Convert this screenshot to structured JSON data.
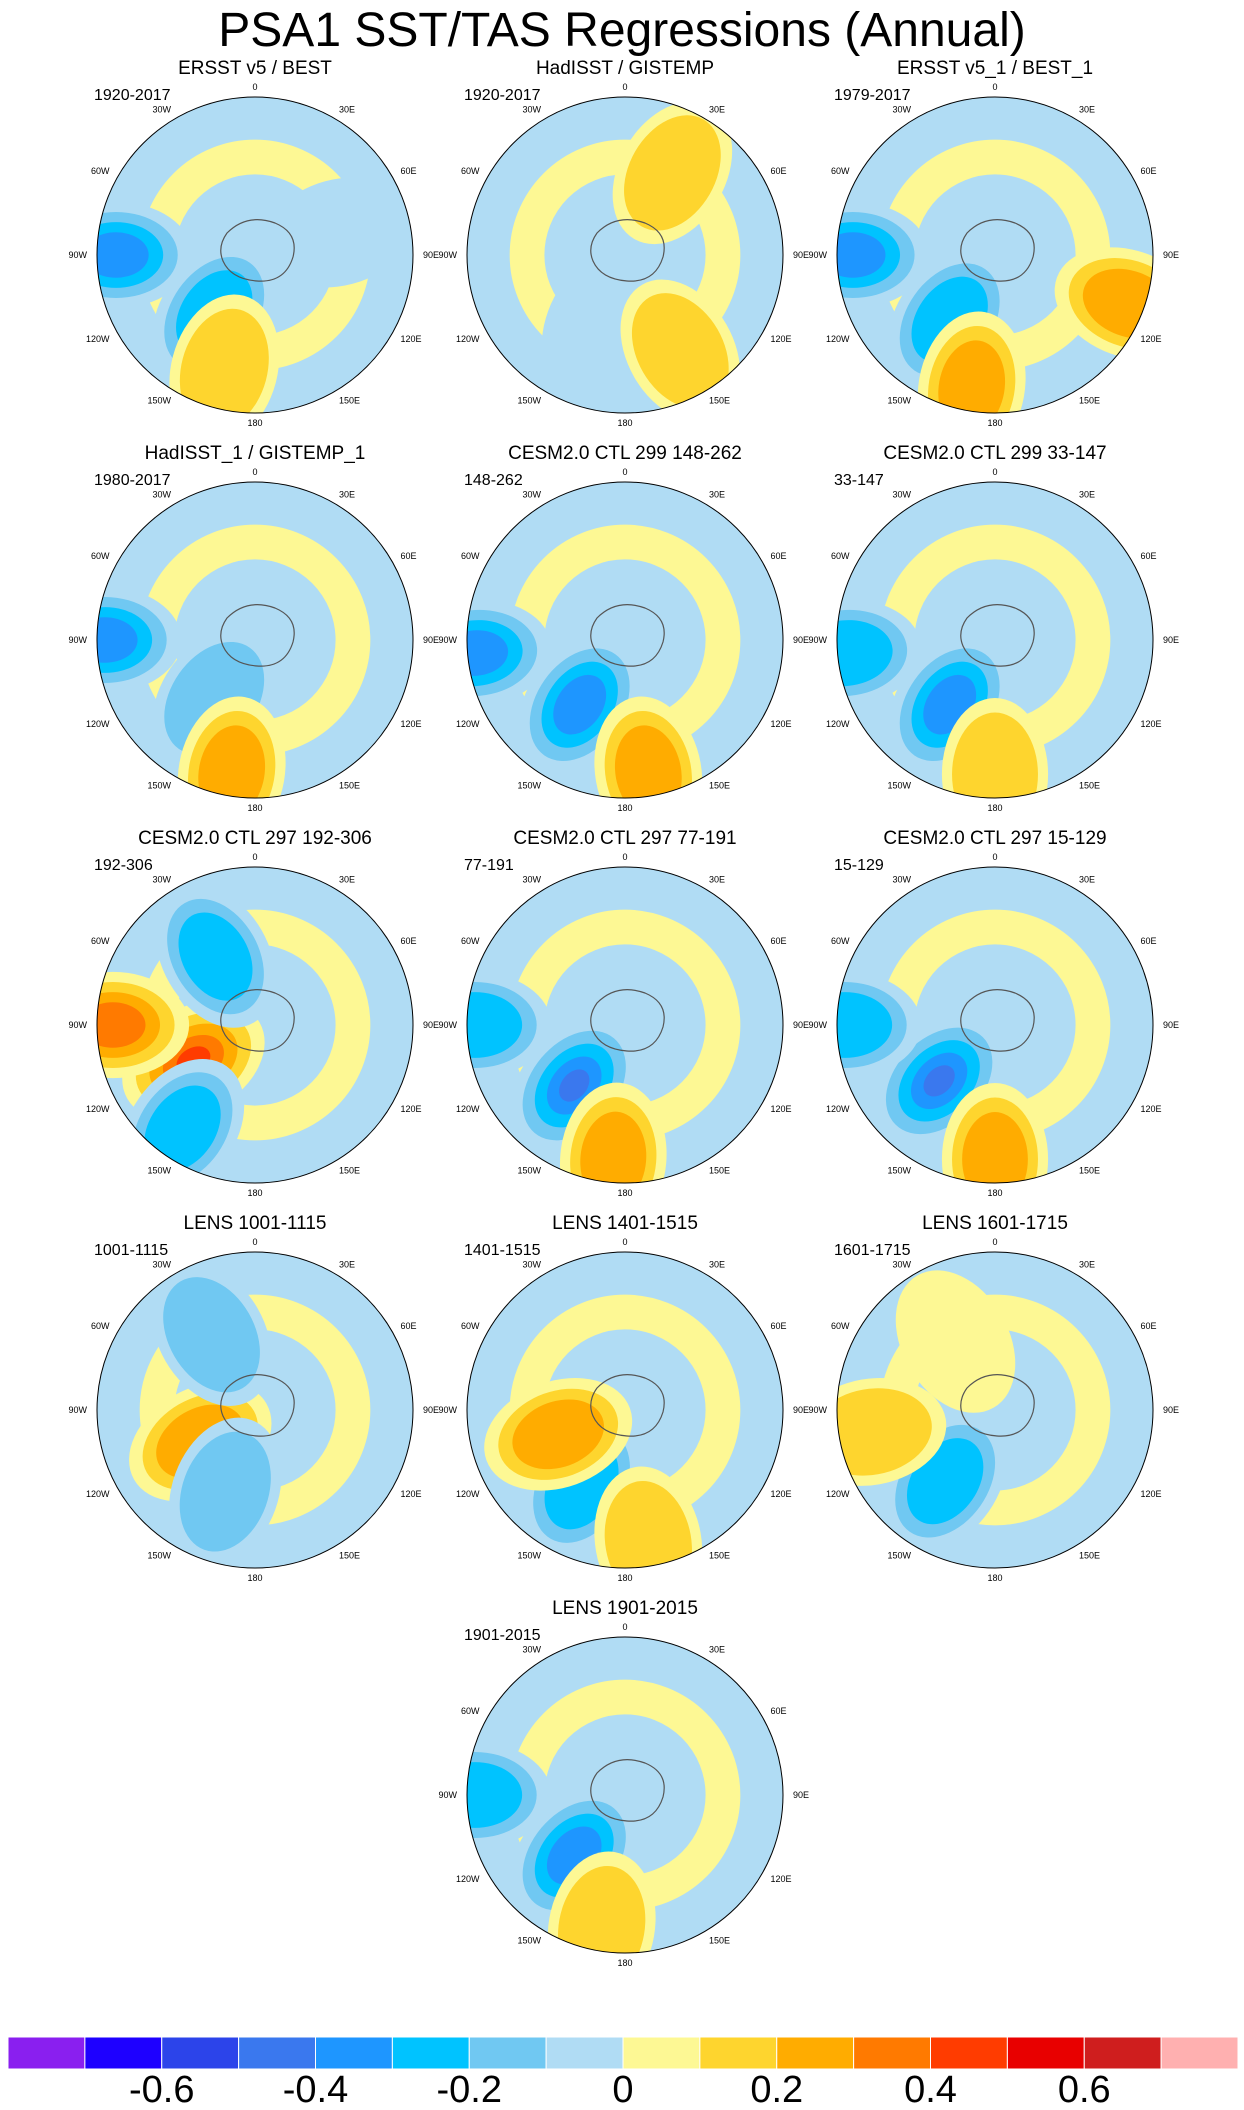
{
  "chart_data": {
    "type": "heatmap",
    "title": "PSA1 SST/TAS Regressions (Annual)",
    "projection": "south-polar-stereographic",
    "longitude_labels": [
      "0",
      "30E",
      "60E",
      "90E",
      "120E",
      "150E",
      "180",
      "150W",
      "120W",
      "90W",
      "60W",
      "30W"
    ],
    "colorbar": {
      "levels": [
        -0.7,
        -0.6,
        -0.5,
        -0.4,
        -0.3,
        -0.2,
        -0.1,
        0,
        0.1,
        0.2,
        0.3,
        0.4,
        0.5,
        0.6,
        0.7
      ],
      "tick_labels": [
        "-0.6",
        "-0.4",
        "-0.2",
        "0",
        "0.2",
        "0.4",
        "0.6"
      ],
      "tick_values": [
        -0.6,
        -0.4,
        -0.2,
        0,
        0.2,
        0.4,
        0.6
      ],
      "colors": [
        "#8a1fef",
        "#1e00ff",
        "#2c44ea",
        "#3a78ee",
        "#1e96ff",
        "#00c3ff",
        "#70c8f2",
        "#b0dcf4",
        "#fdf894",
        "#fed52e",
        "#ffac00",
        "#ff7a00",
        "#ff3c00",
        "#e80000",
        "#cf1e1e",
        "#ffb0b0"
      ]
    },
    "panels": [
      {
        "title": "ERSST v5 / BEST",
        "period": "1920-2017",
        "features": [
          {
            "lon": 215,
            "r": 0.45,
            "v": -0.3
          },
          {
            "lon": 195,
            "r": 0.75,
            "v": 0.2
          },
          {
            "lon": 270,
            "r": 0.88,
            "v": -0.4
          },
          {
            "lon": 75,
            "r": 0.55,
            "v": -0.1
          }
        ]
      },
      {
        "title": "HadISST / GISTEMP",
        "period": "1920-2017",
        "features": [
          {
            "lon": 0,
            "r": 0.0,
            "v": -0.1
          },
          {
            "lon": 200,
            "r": 0.5,
            "v": -0.1
          },
          {
            "lon": 30,
            "r": 0.6,
            "v": 0.2
          },
          {
            "lon": 150,
            "r": 0.7,
            "v": 0.2
          }
        ]
      },
      {
        "title": "ERSST v5_1 / BEST_1",
        "period": "1979-2017",
        "features": [
          {
            "lon": 215,
            "r": 0.5,
            "v": -0.3
          },
          {
            "lon": 190,
            "r": 0.85,
            "v": 0.3
          },
          {
            "lon": 270,
            "r": 0.9,
            "v": -0.4
          },
          {
            "lon": 110,
            "r": 0.9,
            "v": 0.3
          }
        ]
      },
      {
        "title": "HadISST_1 / GISTEMP_1",
        "period": "1980-2017",
        "features": [
          {
            "lon": 215,
            "r": 0.45,
            "v": -0.2
          },
          {
            "lon": 190,
            "r": 0.85,
            "v": 0.3
          },
          {
            "lon": 270,
            "r": 0.95,
            "v": -0.4
          }
        ]
      },
      {
        "title": "CESM2.0 CTL 299 148-262",
        "period": "148-262",
        "features": [
          {
            "lon": 215,
            "r": 0.5,
            "v": -0.4
          },
          {
            "lon": 170,
            "r": 0.85,
            "v": 0.3
          },
          {
            "lon": 265,
            "r": 0.95,
            "v": -0.4
          }
        ]
      },
      {
        "title": "CESM2.0 CTL 299 33-147",
        "period": "33-147",
        "features": [
          {
            "lon": 215,
            "r": 0.5,
            "v": -0.4
          },
          {
            "lon": 180,
            "r": 0.85,
            "v": 0.2
          },
          {
            "lon": 265,
            "r": 0.95,
            "v": -0.3
          }
        ]
      },
      {
        "title": "CESM2.0 CTL 297 192-306",
        "period": "192-306",
        "features": [
          {
            "lon": 240,
            "r": 0.45,
            "v": 0.6
          },
          {
            "lon": 215,
            "r": 0.8,
            "v": -0.3
          },
          {
            "lon": 330,
            "r": 0.5,
            "v": -0.3
          },
          {
            "lon": 270,
            "r": 0.9,
            "v": 0.4
          }
        ]
      },
      {
        "title": "CESM2.0 CTL 297 77-191",
        "period": "77-191",
        "features": [
          {
            "lon": 220,
            "r": 0.5,
            "v": -0.5
          },
          {
            "lon": 185,
            "r": 0.85,
            "v": 0.3
          },
          {
            "lon": 270,
            "r": 0.95,
            "v": -0.3
          }
        ]
      },
      {
        "title": "CESM2.0 CTL 297 15-129",
        "period": "15-129",
        "features": [
          {
            "lon": 225,
            "r": 0.5,
            "v": -0.5
          },
          {
            "lon": 180,
            "r": 0.85,
            "v": 0.3
          },
          {
            "lon": 270,
            "r": 0.95,
            "v": -0.3
          }
        ]
      },
      {
        "title": "LENS 1001-1115",
        "period": "1001-1115",
        "features": [
          {
            "lon": 240,
            "r": 0.4,
            "v": 0.3
          },
          {
            "lon": 200,
            "r": 0.55,
            "v": -0.2
          },
          {
            "lon": 330,
            "r": 0.55,
            "v": -0.2
          }
        ]
      },
      {
        "title": "LENS 1401-1515",
        "period": "1401-1515",
        "features": [
          {
            "lon": 210,
            "r": 0.55,
            "v": -0.3
          },
          {
            "lon": 250,
            "r": 0.45,
            "v": 0.3
          },
          {
            "lon": 170,
            "r": 0.85,
            "v": 0.2
          }
        ]
      },
      {
        "title": "LENS 1601-1715",
        "period": "1601-1715",
        "features": [
          {
            "lon": 215,
            "r": 0.55,
            "v": -0.3
          },
          {
            "lon": 260,
            "r": 0.8,
            "v": 0.2
          },
          {
            "lon": 330,
            "r": 0.5,
            "v": 0.1
          }
        ]
      },
      {
        "title": "LENS 1901-2015",
        "period": "1901-2015",
        "features": [
          {
            "lon": 220,
            "r": 0.5,
            "v": -0.4
          },
          {
            "lon": 190,
            "r": 0.85,
            "v": 0.2
          },
          {
            "lon": 270,
            "r": 0.95,
            "v": -0.3
          }
        ]
      }
    ]
  }
}
